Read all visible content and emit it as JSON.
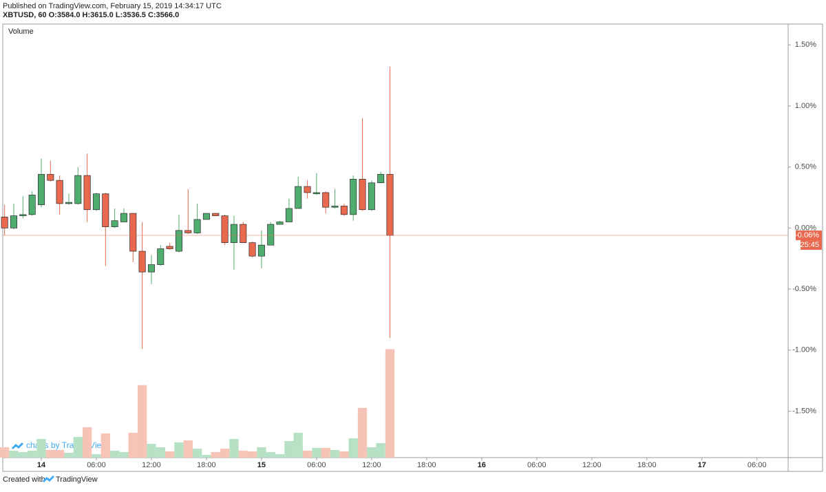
{
  "header": {
    "published": "Published on TradingView.com, February 15, 2019 14:34:17 UTC",
    "symbol": "XBTUSD, 60 O:3584.0 H:3615.0 L:3536.5 C:3566.0"
  },
  "chart_data": {
    "type": "candlestick",
    "pane_label": "Volume",
    "x": [
      -4,
      -3,
      -2,
      -1,
      0,
      1,
      2,
      3,
      4,
      5,
      6,
      7,
      8,
      9,
      10,
      11,
      12,
      13,
      14,
      15,
      16,
      17,
      18,
      19,
      20,
      21,
      22,
      23,
      24,
      25,
      26,
      27,
      28,
      29,
      30,
      31,
      32,
      33,
      34,
      35,
      36,
      37,
      38
    ],
    "open": [
      0.09,
      0,
      0.1,
      0.11,
      0.19,
      0.44,
      0.39,
      0.2,
      0.2,
      0.43,
      0.15,
      0.28,
      0.01,
      0.05,
      0.12,
      -0.19,
      -0.36,
      -0.3,
      -0.15,
      -0.19,
      -0.02,
      -0.04,
      0.07,
      0.12,
      0.1,
      -0.12,
      0.03,
      -0.12,
      -0.23,
      -0.14,
      0.03,
      0.05,
      0.16,
      0.34,
      0.28,
      0.29,
      0.17,
      0.18,
      0.11,
      0.4,
      0.15,
      0.37,
      0.44
    ],
    "high": [
      0.19,
      0.2,
      0.26,
      0.3,
      0.57,
      0.55,
      0.43,
      0.28,
      0.5,
      0.61,
      0.29,
      0.29,
      0.16,
      0.16,
      0.12,
      0.05,
      -0.22,
      -0.14,
      -0.12,
      0.11,
      0.32,
      0.2,
      0.12,
      0.12,
      0.11,
      0.1,
      0.05,
      -0.11,
      -0.02,
      0.05,
      0.06,
      0.24,
      0.42,
      0.39,
      0.45,
      0.3,
      0.32,
      0.2,
      0.43,
      0.9,
      0.39,
      0.46,
      1.32
    ],
    "low": [
      -0.06,
      -0.01,
      0.08,
      0.1,
      0.17,
      0.38,
      0.11,
      0.19,
      0.19,
      0.05,
      0.14,
      -0.31,
      0,
      0.05,
      -0.28,
      -0.99,
      -0.46,
      -0.31,
      -0.18,
      -0.2,
      -0.05,
      -0.05,
      0.07,
      0.1,
      -0.14,
      -0.34,
      -0.12,
      -0.24,
      -0.33,
      -0.14,
      0.03,
      0.05,
      0.16,
      0.24,
      0.27,
      0.12,
      0.16,
      0.1,
      0.06,
      0.14,
      0.14,
      0.37,
      -0.9
    ],
    "close": [
      0,
      0.1,
      0.11,
      0.27,
      0.44,
      0.39,
      0.2,
      0.21,
      0.43,
      0.15,
      0.28,
      0.01,
      0.06,
      0.12,
      -0.19,
      -0.36,
      -0.3,
      -0.17,
      -0.17,
      -0.02,
      -0.04,
      0.07,
      0.12,
      0.1,
      -0.12,
      0.03,
      -0.12,
      -0.23,
      -0.14,
      0.03,
      0.05,
      0.16,
      0.34,
      0.29,
      0.29,
      0.17,
      0.18,
      0.11,
      0.4,
      0.15,
      0.37,
      0.44,
      -0.06
    ],
    "volume": [
      15,
      10,
      8,
      10,
      27,
      11,
      11,
      7,
      30,
      44,
      5,
      35,
      10,
      8,
      36,
      105,
      20,
      15,
      9,
      22,
      25,
      13,
      4,
      8,
      13,
      27,
      10,
      9,
      15,
      8,
      5,
      24,
      36,
      10,
      14,
      14,
      11,
      9,
      28,
      72,
      15,
      21,
      157
    ],
    "up_color": "#4fae6f",
    "down_color": "#e9694e",
    "volume_up_color": "#b6e1c4",
    "volume_down_color": "#f6c4b6",
    "ylim": [
      -1.88,
      1.67
    ],
    "yticks": [
      {
        "value": 1.5,
        "label": "1.50%"
      },
      {
        "value": 1.0,
        "label": "1.00%"
      },
      {
        "value": 0.5,
        "label": "0.50%"
      },
      {
        "value": 0,
        "label": "0.00%"
      },
      {
        "value": -0.5,
        "label": "-0.50%"
      },
      {
        "value": -1.0,
        "label": "-1.00%"
      },
      {
        "value": -1.5,
        "label": "-1.50%"
      }
    ],
    "xlim": [
      -4.2,
      81.4
    ],
    "xticks": [
      {
        "value": 0,
        "label": "14"
      },
      {
        "value": 6,
        "label": "06:00"
      },
      {
        "value": 12,
        "label": "12:00"
      },
      {
        "value": 18,
        "label": "18:00"
      },
      {
        "value": 24,
        "label": "15"
      },
      {
        "value": 30,
        "label": "06:00"
      },
      {
        "value": 36,
        "label": "12:00"
      },
      {
        "value": 42,
        "label": "18:00"
      },
      {
        "value": 48,
        "label": "16"
      },
      {
        "value": 54,
        "label": "06:00"
      },
      {
        "value": 60,
        "label": "12:00"
      },
      {
        "value": 66,
        "label": "18:00"
      },
      {
        "value": 72,
        "label": "17"
      },
      {
        "value": 78,
        "label": "06:00"
      }
    ],
    "last_price": {
      "value": -0.06,
      "label": "-0.06%"
    },
    "countdown": "25:45",
    "grid": false
  },
  "watermark": "charts by TradingView",
  "footer": {
    "prefix": "Created with",
    "brand": "TradingView"
  }
}
